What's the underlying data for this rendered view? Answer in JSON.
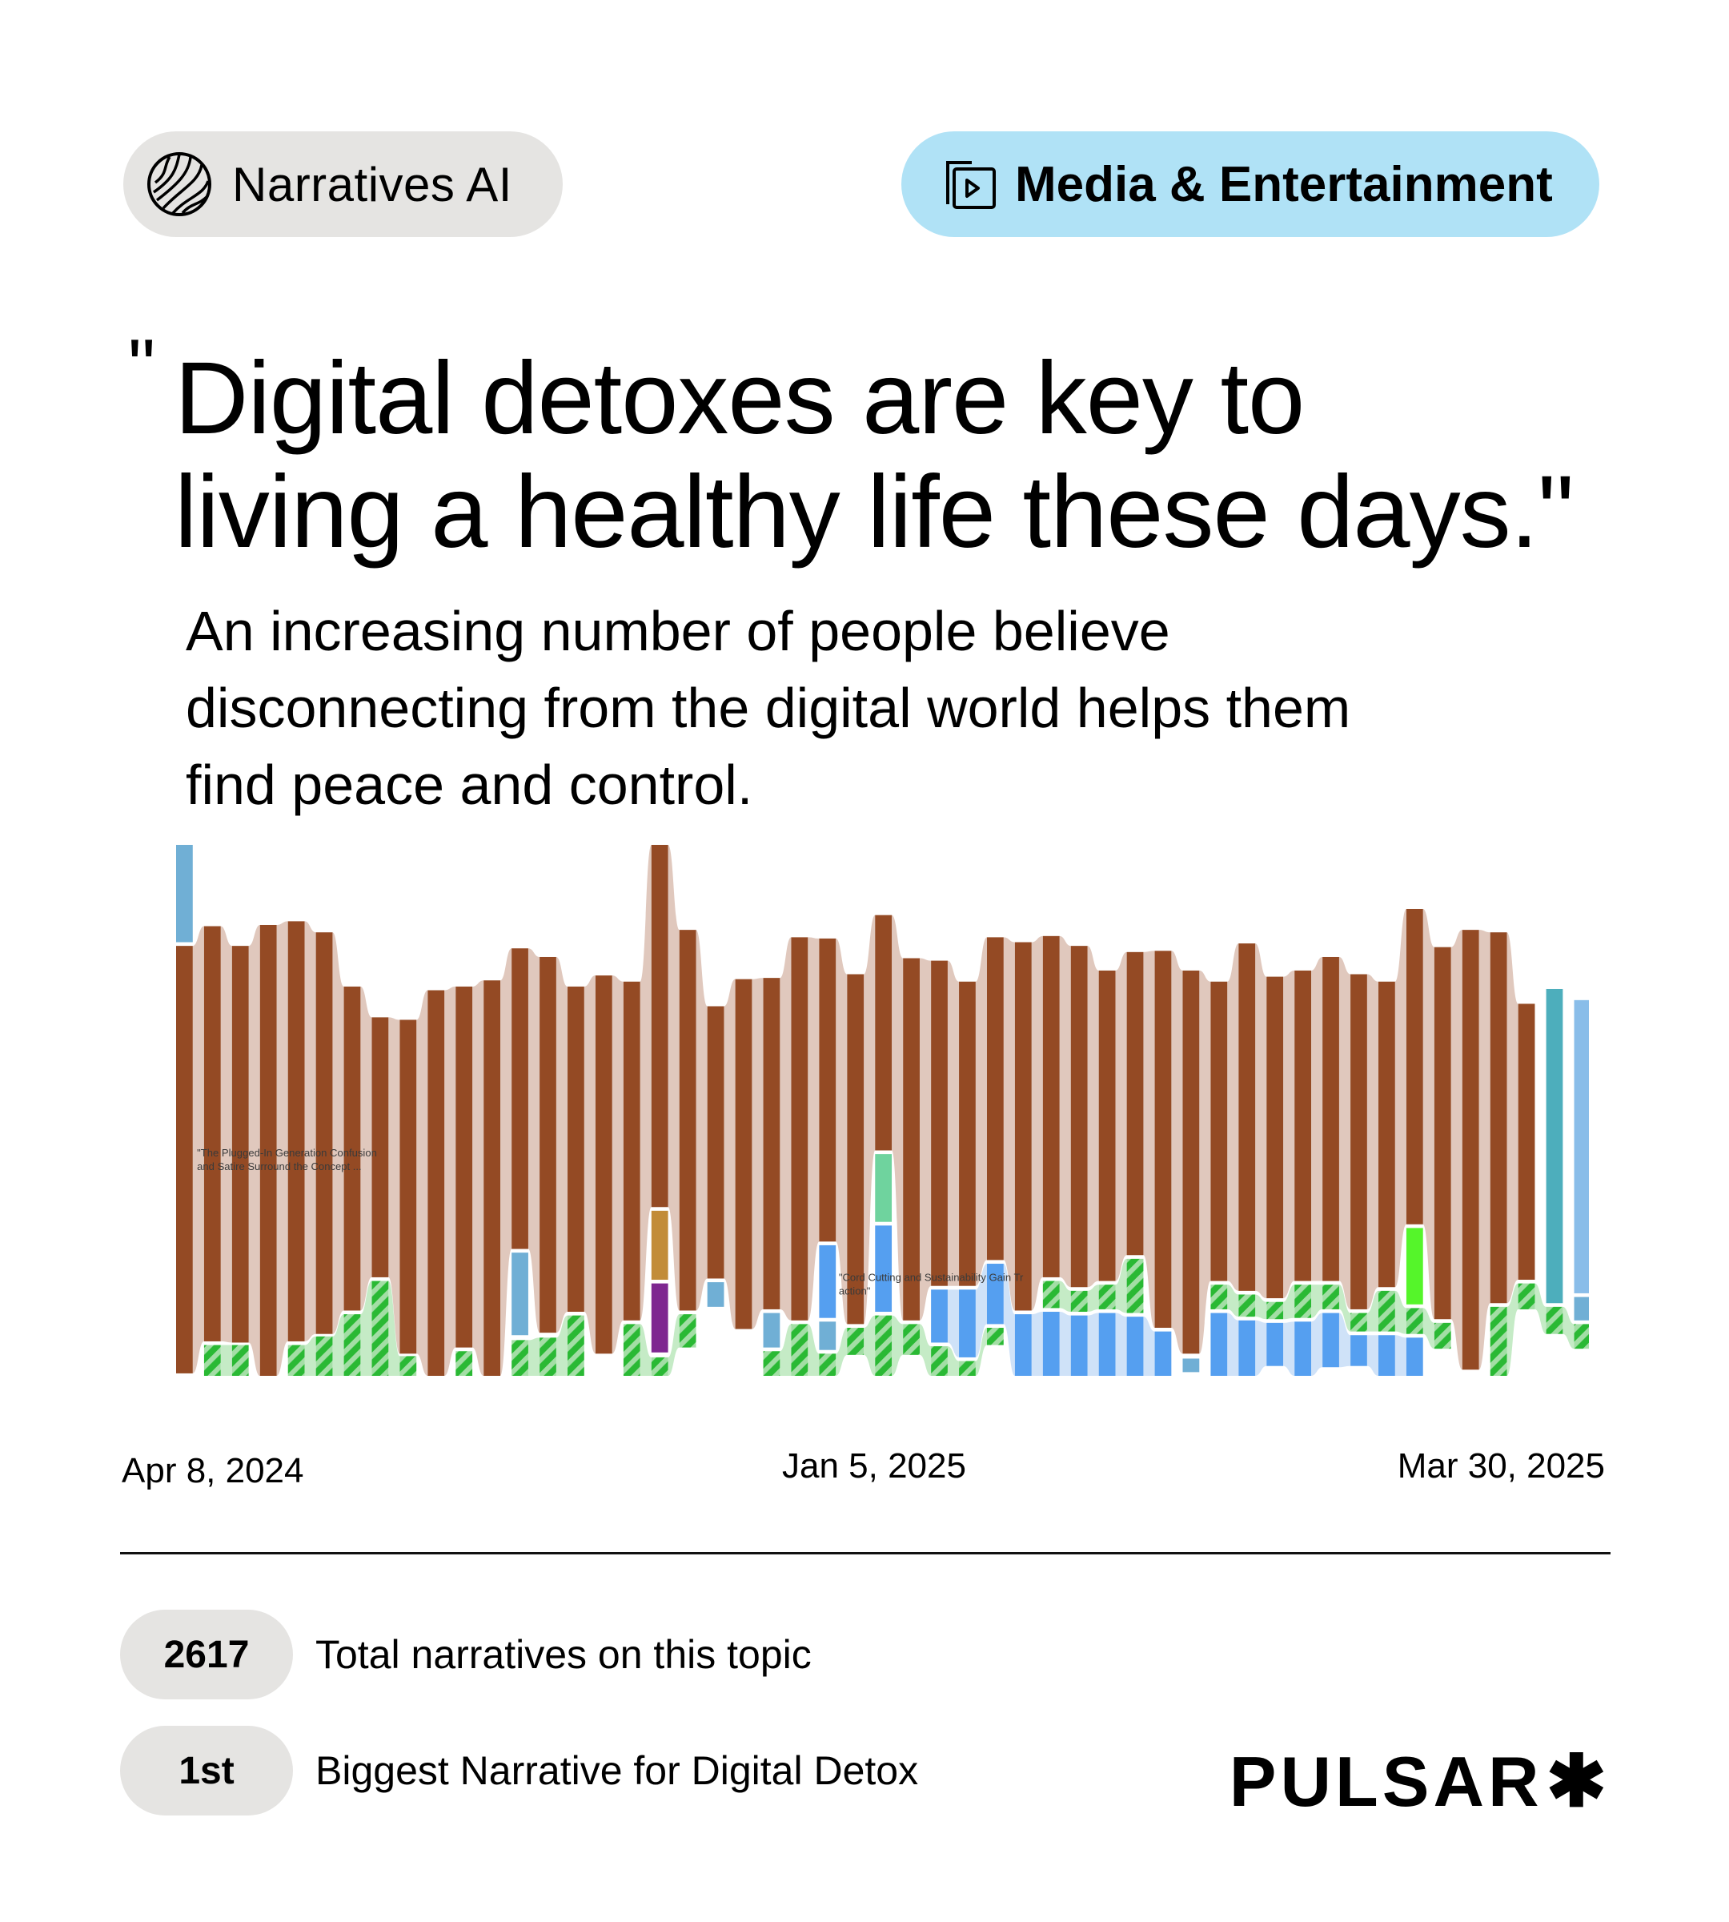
{
  "header": {
    "brand_pill": {
      "label": "Narratives AI",
      "icon": "wave-globe-icon"
    },
    "category_pill": {
      "label": "Media & Entertainment",
      "icon": "video-stack-icon",
      "color": "#b0e2f6"
    }
  },
  "quote": {
    "open_mark": "\"",
    "line1": "Digital detoxes are key to",
    "line2": "living a healthy life these days.\""
  },
  "subtitle": {
    "line1": "An increasing number of people believe",
    "line2": "disconnecting from the digital world helps them",
    "line3": "find peace and control."
  },
  "axis": {
    "start": "Apr 8, 2024",
    "mid": "Jan 5, 2025",
    "end": "Mar 30, 2025"
  },
  "stats": [
    {
      "value": "2617",
      "label": "Total narratives on this topic"
    },
    {
      "value": "1st",
      "label": "Biggest Narrative for Digital Detox"
    }
  ],
  "logo": {
    "text": "PULSAR",
    "mark": "✱"
  },
  "chart_data": {
    "type": "bar",
    "subtype": "stacked streamgraph-bar (weekly narrative volume)",
    "title": "",
    "xlabel": "",
    "ylabel": "",
    "x_ticks": [
      "Apr 8, 2024",
      "Jan 5, 2025",
      "Mar 30, 2025"
    ],
    "grid": false,
    "legend": "none",
    "annotations": [
      {
        "text": "\"The Plugged-In Generation Confusion and Satire Surround the Concept ...",
        "bar_index": 1
      },
      {
        "text": "\"Cord Cutting and Sustainability Gain Traction\"",
        "bar_index": 24
      }
    ],
    "colors": {
      "brown": "#944a24",
      "green": "#2ab934",
      "blue": "#559ff0",
      "steelblue": "#70afd5",
      "gold": "#c28c38",
      "purple": "#7e2790",
      "mint": "#6fd39e",
      "lime": "#55f52a",
      "teal": "#4daebc",
      "skyblue": "#89bde9"
    },
    "hatched": [
      "green"
    ],
    "y_top": 686,
    "y_bottom": 1117,
    "x_left": 143,
    "bar_pitch": 22.7,
    "bar_width": 13.5,
    "bars": [
      [
        [
          "steelblue",
          686,
          765
        ],
        [
          "brown",
          768,
          1115
        ]
      ],
      [
        [
          "brown",
          752,
          1089
        ],
        [
          "green",
          1092,
          1117
        ]
      ],
      [
        [
          "brown",
          768,
          1090
        ],
        [
          "green",
          1092,
          1117
        ]
      ],
      [
        [
          "brown",
          751,
          1117
        ]
      ],
      [
        [
          "brown",
          748,
          1089
        ],
        [
          "green",
          1092,
          1117
        ]
      ],
      [
        [
          "brown",
          757,
          1083
        ],
        [
          "green",
          1085,
          1117
        ]
      ],
      [
        [
          "brown",
          801,
          1064
        ],
        [
          "green",
          1067,
          1117
        ]
      ],
      [
        [
          "brown",
          826,
          1037
        ],
        [
          "green",
          1040,
          1117
        ]
      ],
      [
        [
          "brown",
          828,
          1099
        ],
        [
          "green",
          1101,
          1117
        ]
      ],
      [
        [
          "brown",
          804,
          1117
        ]
      ],
      [
        [
          "brown",
          801,
          1094
        ],
        [
          "green",
          1097,
          1117
        ]
      ],
      [
        [
          "brown",
          796,
          1117
        ]
      ],
      [
        [
          "brown",
          770,
          1014
        ],
        [
          "steelblue",
          1017,
          1084
        ],
        [
          "green",
          1088,
          1117
        ]
      ],
      [
        [
          "brown",
          777,
          1082
        ],
        [
          "green",
          1086,
          1117
        ]
      ],
      [
        [
          "brown",
          801,
          1065
        ],
        [
          "green",
          1068,
          1117
        ]
      ],
      [
        [
          "brown",
          792,
          1099
        ]
      ],
      [
        [
          "brown",
          797,
          1072
        ],
        [
          "green",
          1075,
          1117
        ]
      ],
      [
        [
          "brown",
          686,
          980
        ],
        [
          "gold",
          983,
          1039
        ],
        [
          "purple",
          1042,
          1098
        ],
        [
          "green",
          1102,
          1117
        ]
      ],
      [
        [
          "brown",
          755,
          1064
        ],
        [
          "green",
          1067,
          1094
        ]
      ],
      [
        [
          "brown",
          817,
          1038
        ],
        [
          "steelblue",
          1041,
          1061
        ]
      ],
      [
        [
          "brown",
          795,
          1079
        ]
      ],
      [
        [
          "brown",
          794,
          1063
        ],
        [
          "steelblue",
          1066,
          1094
        ],
        [
          "green",
          1097,
          1117
        ]
      ],
      [
        [
          "brown",
          761,
          1072
        ],
        [
          "green",
          1075,
          1117
        ]
      ],
      [
        [
          "brown",
          762,
          1008
        ],
        [
          "blue",
          1011,
          1070
        ],
        [
          "steelblue",
          1073,
          1096
        ],
        [
          "green",
          1099,
          1117
        ]
      ],
      [
        [
          "brown",
          791,
          1075
        ],
        [
          "green",
          1078,
          1100
        ]
      ],
      [
        [
          "brown",
          743,
          934
        ],
        [
          "mint",
          937,
          992
        ],
        [
          "blue",
          995,
          1065
        ],
        [
          "green",
          1068,
          1117
        ]
      ],
      [
        [
          "brown",
          778,
          1072
        ],
        [
          "green",
          1075,
          1100
        ]
      ],
      [
        [
          "brown",
          780,
          1044
        ],
        [
          "blue",
          1047,
          1090
        ],
        [
          "green",
          1093,
          1117
        ]
      ],
      [
        [
          "brown",
          797,
          1044
        ],
        [
          "blue",
          1047,
          1102
        ],
        [
          "green",
          1105,
          1117
        ]
      ],
      [
        [
          "brown",
          761,
          1023
        ],
        [
          "blue",
          1026,
          1075
        ],
        [
          "green",
          1078,
          1092
        ]
      ],
      [
        [
          "brown",
          765,
          1064
        ],
        [
          "blue",
          1067,
          1117
        ]
      ],
      [
        [
          "brown",
          760,
          1037
        ],
        [
          "green",
          1040,
          1062
        ],
        [
          "blue",
          1065,
          1117
        ]
      ],
      [
        [
          "brown",
          768,
          1045
        ],
        [
          "green",
          1048,
          1065
        ],
        [
          "blue",
          1068,
          1117
        ]
      ],
      [
        [
          "brown",
          788,
          1040
        ],
        [
          "green",
          1043,
          1063
        ],
        [
          "blue",
          1066,
          1117
        ]
      ],
      [
        [
          "brown",
          773,
          1019
        ],
        [
          "green",
          1022,
          1066
        ],
        [
          "blue",
          1069,
          1117
        ]
      ],
      [
        [
          "brown",
          772,
          1078
        ],
        [
          "blue",
          1081,
          1117
        ]
      ],
      [
        [
          "brown",
          788,
          1099
        ],
        [
          "steelblue",
          1103,
          1114
        ]
      ],
      [
        [
          "brown",
          797,
          1040
        ],
        [
          "green",
          1043,
          1063
        ],
        [
          "blue",
          1066,
          1117
        ]
      ],
      [
        [
          "brown",
          766,
          1048
        ],
        [
          "green",
          1051,
          1069
        ],
        [
          "blue",
          1072,
          1117
        ]
      ],
      [
        [
          "brown",
          793,
          1054
        ],
        [
          "green",
          1057,
          1071
        ],
        [
          "blue",
          1074,
          1109
        ]
      ],
      [
        [
          "brown",
          788,
          1040
        ],
        [
          "green",
          1043,
          1070
        ],
        [
          "blue",
          1073,
          1117
        ]
      ],
      [
        [
          "brown",
          777,
          1040
        ],
        [
          "green",
          1043,
          1063
        ],
        [
          "blue",
          1066,
          1110
        ]
      ],
      [
        [
          "brown",
          791,
          1063
        ],
        [
          "green",
          1066,
          1081
        ],
        [
          "blue",
          1084,
          1109
        ]
      ],
      [
        [
          "brown",
          797,
          1045
        ],
        [
          "green",
          1048,
          1081
        ],
        [
          "blue",
          1084,
          1117
        ]
      ],
      [
        [
          "brown",
          738,
          994
        ],
        [
          "lime",
          997,
          1059
        ],
        [
          "green",
          1062,
          1083
        ],
        [
          "blue",
          1086,
          1117
        ]
      ],
      [
        [
          "brown",
          769,
          1071
        ],
        [
          "green",
          1074,
          1095
        ]
      ],
      [
        [
          "brown",
          755,
          1112
        ]
      ],
      [
        [
          "brown",
          757,
          1058
        ],
        [
          "green",
          1061,
          1117
        ]
      ],
      [
        [
          "brown",
          815,
          1039
        ],
        [
          "green",
          1042,
          1063
        ]
      ],
      [
        [
          "teal",
          803,
          1058
        ],
        [
          "green",
          1061,
          1083
        ]
      ],
      [
        [
          "skyblue",
          812,
          1050
        ],
        [
          "steelblue",
          1053,
          1072
        ],
        [
          "green",
          1075,
          1095
        ]
      ]
    ]
  }
}
